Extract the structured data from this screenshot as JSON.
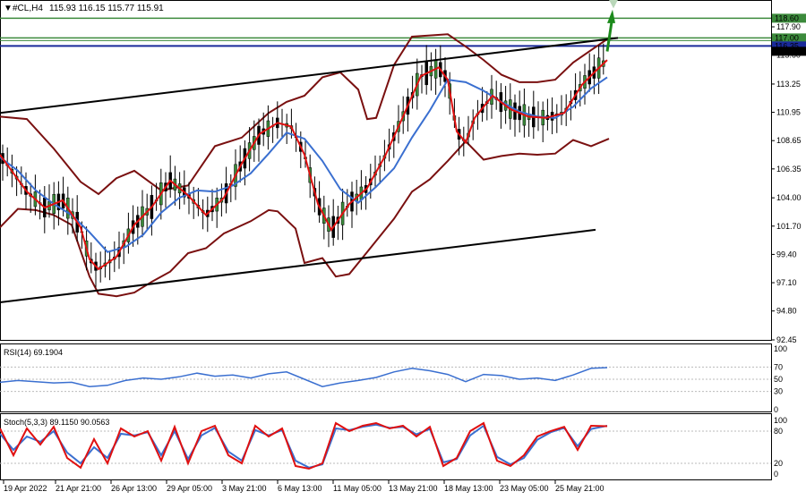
{
  "header": {
    "symbol": "#CL,H4",
    "ohlc": "115.93 116.15 115.77 115.91"
  },
  "chart_data": [
    {
      "type": "candlestick",
      "title": "#CL,H4",
      "price_ticks": [
        "117.90",
        "115.60",
        "113.25",
        "110.95",
        "108.65",
        "106.35",
        "104.00",
        "101.70",
        "99.40",
        "97.10",
        "94.80",
        "92.45"
      ],
      "price_labels": [
        {
          "text": "118.60",
          "value": 118.6,
          "color": "#3c8a3c"
        },
        {
          "text": "117.00",
          "value": 117.0,
          "color": "#3c8a3c"
        },
        {
          "text": "116.35",
          "value": 116.35,
          "color": "#1a2a9a"
        },
        {
          "text": "115.91",
          "value": 115.91,
          "color": "#000000"
        }
      ],
      "ylim": [
        92.45,
        120.0
      ],
      "x_labels": [
        "19 Apr 2022",
        "21 Apr 21:00",
        "26 Apr 13:00",
        "29 Apr 05:00",
        "3 May 21:00",
        "6 May 13:00",
        "11 May 05:00",
        "13 May 21:00",
        "18 May 13:00",
        "23 May 05:00",
        "25 May 21:00"
      ],
      "series": [
        {
          "name": "upper-bollinger",
          "color": "#7a1010",
          "x": [
            0,
            30,
            60,
            90,
            110,
            130,
            150,
            180,
            210,
            240,
            270,
            300,
            320,
            340,
            360,
            380,
            400,
            410,
            420,
            440,
            460,
            480,
            500,
            520,
            540,
            560,
            580,
            600,
            620,
            640,
            660,
            680
          ],
          "y": [
            110.6,
            110.4,
            108,
            105.3,
            104.3,
            105.6,
            106.2,
            104.6,
            105.0,
            108.2,
            108.9,
            110.9,
            111.8,
            112.3,
            113.8,
            114.2,
            112.8,
            110.4,
            110.5,
            114.8,
            117.1,
            117.2,
            117.3,
            116.3,
            115.2,
            114.0,
            113.4,
            113.4,
            113.6,
            115.0,
            116.0,
            117.0
          ]
        },
        {
          "name": "lower-bollinger",
          "color": "#7a1010",
          "x": [
            0,
            20,
            40,
            60,
            80,
            100,
            110,
            130,
            150,
            170,
            190,
            210,
            230,
            250,
            280,
            300,
            310,
            330,
            340,
            360,
            375,
            390,
            410,
            440,
            460,
            480,
            500,
            520,
            540,
            560,
            580,
            600,
            620,
            640,
            660,
            680
          ],
          "y": [
            101.6,
            103.1,
            103.0,
            102.6,
            101.8,
            97.6,
            96.2,
            96.0,
            96.3,
            97.2,
            98.0,
            99.5,
            99.9,
            101.1,
            102.1,
            103.0,
            102.9,
            101.5,
            98.7,
            99.1,
            97.6,
            97.8,
            99.6,
            102.3,
            104.5,
            105.5,
            107.0,
            108.6,
            107.1,
            107.4,
            107.6,
            107.5,
            107.6,
            108.7,
            108.2,
            108.8
          ]
        },
        {
          "name": "fast-ma-red",
          "color": "#e01010",
          "x": [
            0,
            10,
            30,
            50,
            70,
            90,
            100,
            110,
            130,
            150,
            170,
            190,
            210,
            230,
            250,
            270,
            290,
            310,
            325,
            340,
            355,
            370,
            390,
            410,
            430,
            450,
            470,
            490,
            500,
            510,
            520,
            530,
            550,
            570,
            590,
            610,
            630,
            650,
            665,
            678
          ],
          "y": [
            107.5,
            106.5,
            104.5,
            103.2,
            103.8,
            101.6,
            99.0,
            98.2,
            99.2,
            101.8,
            103.3,
            105.4,
            104.2,
            102.6,
            104.0,
            106.8,
            109.2,
            110.1,
            109.8,
            107.5,
            103.5,
            101.4,
            103.5,
            104.8,
            107.4,
            110.6,
            113.9,
            114.6,
            113.6,
            109.4,
            108.5,
            110.5,
            112.3,
            111.2,
            110.6,
            110.5,
            110.9,
            113.2,
            114.3,
            115.2
          ]
        },
        {
          "name": "slow-ma-blue",
          "color": "#3a6fd0",
          "x": [
            0,
            20,
            40,
            60,
            80,
            100,
            120,
            140,
            160,
            180,
            200,
            220,
            240,
            260,
            280,
            300,
            320,
            340,
            360,
            380,
            400,
            420,
            440,
            460,
            480,
            500,
            520,
            540,
            560,
            580,
            600,
            620,
            640,
            660,
            678
          ],
          "y": [
            107.3,
            106.2,
            104.6,
            103.5,
            102.6,
            101.2,
            99.6,
            100.0,
            101.0,
            102.8,
            104.0,
            104.6,
            104.5,
            105.0,
            106.0,
            107.6,
            109.3,
            108.8,
            107.0,
            104.7,
            103.6,
            104.9,
            106.4,
            108.9,
            111.1,
            113.6,
            113.4,
            112.7,
            111.8,
            111.0,
            110.6,
            110.5,
            111.4,
            112.9,
            113.8
          ]
        },
        {
          "name": "rsi-line",
          "color": "#3a6fd0",
          "x": [
            0,
            20,
            40,
            60,
            80,
            100,
            120,
            140,
            160,
            180,
            200,
            220,
            240,
            260,
            280,
            300,
            320,
            340,
            360,
            380,
            400,
            420,
            440,
            460,
            480,
            500,
            520,
            540,
            560,
            580,
            600,
            620,
            640,
            660,
            678
          ],
          "y": [
            45,
            48,
            46,
            44,
            45,
            38,
            40,
            48,
            52,
            50,
            54,
            60,
            55,
            57,
            52,
            59,
            62,
            50,
            38,
            44,
            48,
            53,
            62,
            68,
            64,
            58,
            46,
            58,
            56,
            50,
            52,
            48,
            57,
            68,
            69.19
          ]
        },
        {
          "name": "stoch-main",
          "color": "#e01010",
          "x": [
            0,
            15,
            30,
            45,
            60,
            75,
            90,
            105,
            120,
            135,
            150,
            165,
            180,
            195,
            210,
            225,
            240,
            255,
            270,
            285,
            300,
            315,
            330,
            345,
            360,
            375,
            390,
            405,
            420,
            435,
            450,
            465,
            480,
            495,
            510,
            525,
            540,
            555,
            570,
            585,
            600,
            615,
            630,
            645,
            660,
            678
          ],
          "y": [
            85,
            35,
            85,
            55,
            88,
            30,
            12,
            65,
            20,
            85,
            70,
            80,
            25,
            88,
            20,
            80,
            90,
            35,
            20,
            90,
            70,
            85,
            15,
            10,
            20,
            95,
            80,
            90,
            95,
            85,
            90,
            70,
            88,
            15,
            30,
            80,
            95,
            25,
            15,
            35,
            70,
            80,
            88,
            45,
            90,
            89.115
          ]
        },
        {
          "name": "stoch-signal",
          "color": "#3a6fd0",
          "x": [
            0,
            15,
            30,
            45,
            60,
            75,
            90,
            105,
            120,
            135,
            150,
            165,
            180,
            195,
            210,
            225,
            240,
            255,
            270,
            285,
            300,
            315,
            330,
            345,
            360,
            375,
            390,
            405,
            420,
            435,
            450,
            465,
            480,
            495,
            510,
            525,
            540,
            555,
            570,
            585,
            600,
            615,
            630,
            645,
            660,
            678
          ],
          "y": [
            75,
            45,
            70,
            60,
            80,
            40,
            20,
            50,
            30,
            75,
            72,
            78,
            35,
            80,
            28,
            72,
            86,
            42,
            25,
            82,
            72,
            82,
            25,
            12,
            18,
            85,
            82,
            88,
            92,
            86,
            88,
            74,
            84,
            22,
            28,
            72,
            90,
            32,
            18,
            30,
            64,
            78,
            86,
            52,
            84,
            90.0563
          ]
        }
      ],
      "channel_upper": {
        "x": [
          0,
          690
        ],
        "y": [
          110.9,
          117.0
        ]
      },
      "channel_lower": {
        "x": [
          0,
          665
        ],
        "y": [
          95.5,
          101.4
        ]
      }
    },
    {
      "type": "line",
      "title": "RSI(14) 69.1904",
      "ylim": [
        0,
        100
      ],
      "y_ticks": [
        "100",
        "70",
        "50",
        "30",
        "0"
      ]
    },
    {
      "type": "line",
      "title": "Stoch(5,3,3) 89.1150 90.0563",
      "ylim": [
        0,
        100
      ],
      "y_ticks": [
        "100",
        "80",
        "20",
        "0"
      ]
    }
  ]
}
